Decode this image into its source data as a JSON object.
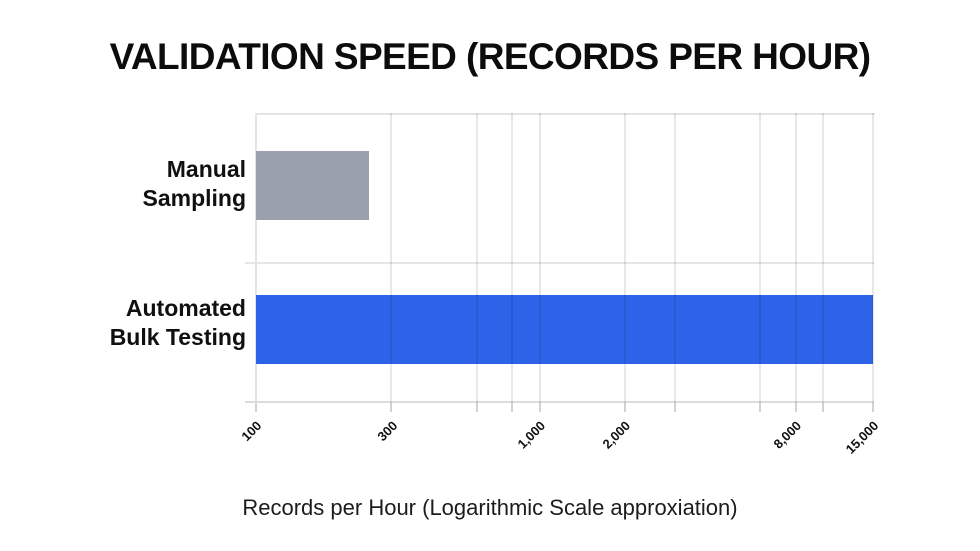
{
  "title": "VALIDATION SPEED (RECORDS PER HOUR)",
  "chart_data": {
    "type": "bar",
    "orientation": "horizontal",
    "title": "VALIDATION SPEED (RECORDS PER HOUR)",
    "xlabel": "Records per Hour (Logarithmic Scale approxiation)",
    "ylabel": "",
    "x_scale": "log",
    "x_range": [
      100,
      15000
    ],
    "grid": true,
    "legend": false,
    "categories": [
      {
        "label_lines": [
          "Manual",
          "Sampling"
        ],
        "label": "Manual Sampling",
        "value": 250,
        "color": "#9aa1ad"
      },
      {
        "label_lines": [
          "Automated",
          "Bulk Testing"
        ],
        "label": "Automated Bulk Testing",
        "value": 15000,
        "color": "#2c63e9"
      }
    ],
    "x_ticks": [
      {
        "value": 100,
        "label": "100"
      },
      {
        "value": 300,
        "label": "300"
      },
      {
        "value": 1000,
        "label": "1,000"
      },
      {
        "value": 2000,
        "label": "2,000"
      },
      {
        "value": 8000,
        "label": "8,000"
      },
      {
        "value": 15000,
        "label": "15,000"
      }
    ],
    "minor_gridline_values": [
      600,
      800,
      3000,
      6000,
      10000
    ]
  }
}
